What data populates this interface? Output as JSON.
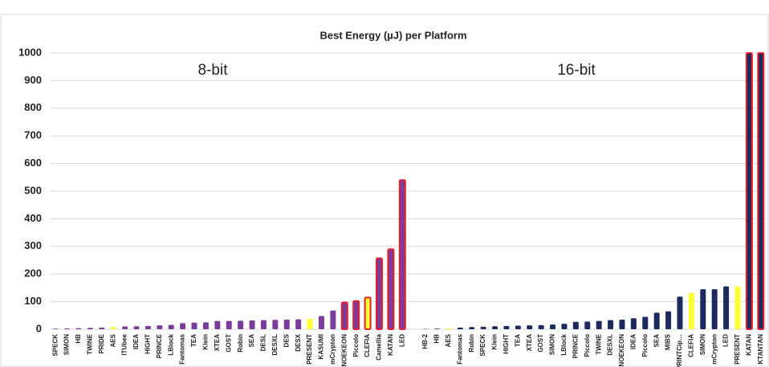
{
  "chart_data": {
    "type": "bar",
    "title": "Best Energy (µJ) per Platform",
    "annotations": [
      "8-bit",
      "16-bit"
    ],
    "categories": [
      "SPECK",
      "SIMON",
      "HB",
      "TWINE",
      "PRIDE",
      "AES",
      "ITUbee",
      "IDEA",
      "HIGHT",
      "PRINCE",
      "LBlock",
      "Fantomas",
      "TEA",
      "Klein",
      "XTEA",
      "GOST",
      "Robin",
      "SEA",
      "DESL",
      "DESXL",
      "DES",
      "DESX",
      "PRESENT",
      "KASUMI",
      "mCrypton",
      "NOEKEON",
      "Piccolo",
      "CLEFIA",
      "Camellia",
      "KATAN",
      "LED",
      null,
      "HB-2",
      "HB",
      "AES",
      "Fantomas",
      "Robin",
      "SPECK",
      "Klein",
      "HIGHT",
      "TEA",
      "XTEA",
      "GOST",
      "SIMON",
      "LBlock",
      "PRINCE",
      "Piccolo",
      "TWINE",
      "DESXL",
      "NOEKEON",
      "IDEA",
      "Piccolo",
      "SEA",
      "MIBS",
      "PRINTCip…",
      "CLEFIA",
      "SIMON",
      "mCrypton",
      "LED",
      "PRESENT",
      "KATAN",
      "KTANTAN"
    ],
    "values": [
      2,
      3,
      4,
      5,
      6,
      8,
      10,
      11,
      12,
      14,
      16,
      22,
      24,
      25,
      30,
      30,
      31,
      32,
      33,
      34,
      35,
      36,
      38,
      48,
      68,
      97,
      102,
      115,
      257,
      290,
      540,
      null,
      1,
      2,
      4,
      6,
      8,
      9,
      11,
      12,
      13,
      14,
      15,
      17,
      20,
      27,
      28,
      30,
      33,
      35,
      40,
      45,
      60,
      65,
      118,
      132,
      145,
      145,
      155,
      155,
      1000,
      1000
    ],
    "colors": [
      "#7a3d9e",
      "#7a3d9e",
      "#7a3d9e",
      "#7a3d9e",
      "#7a3d9e",
      "#ffff33",
      "#7a3d9e",
      "#7a3d9e",
      "#7a3d9e",
      "#7a3d9e",
      "#7a3d9e",
      "#7a3d9e",
      "#7a3d9e",
      "#7a3d9e",
      "#7a3d9e",
      "#7a3d9e",
      "#7a3d9e",
      "#7a3d9e",
      "#7a3d9e",
      "#7a3d9e",
      "#7a3d9e",
      "#7a3d9e",
      "#ffff33",
      "#7a3d9e",
      "#7a3d9e",
      "#7a3d9e",
      "#7a3d9e",
      "#ffff33",
      "#7a3d9e",
      "#7a3d9e",
      "#7a3d9e",
      null,
      "#1c2a5e",
      "#1c2a5e",
      "#ffff33",
      "#1c2a5e",
      "#1c2a5e",
      "#1c2a5e",
      "#1c2a5e",
      "#1c2a5e",
      "#1c2a5e",
      "#1c2a5e",
      "#1c2a5e",
      "#1c2a5e",
      "#1c2a5e",
      "#1c2a5e",
      "#1c2a5e",
      "#1c2a5e",
      "#1c2a5e",
      "#1c2a5e",
      "#1c2a5e",
      "#1c2a5e",
      "#1c2a5e",
      "#1c2a5e",
      "#1c2a5e",
      "#ffff33",
      "#1c2a5e",
      "#1c2a5e",
      "#1c2a5e",
      "#ffff33",
      "#1c2a5e",
      "#1c2a5e"
    ],
    "edgecolors": [
      null,
      null,
      null,
      null,
      null,
      null,
      null,
      null,
      null,
      null,
      null,
      null,
      null,
      null,
      null,
      null,
      null,
      null,
      null,
      null,
      null,
      null,
      null,
      null,
      null,
      "#e3202b",
      "#e3202b",
      "#e3202b",
      "#e3202b",
      "#e3202b",
      "#e3202b",
      null,
      null,
      null,
      null,
      null,
      null,
      null,
      null,
      null,
      null,
      null,
      null,
      null,
      null,
      null,
      null,
      null,
      null,
      null,
      null,
      null,
      null,
      null,
      null,
      null,
      null,
      null,
      null,
      null,
      "#e3202b",
      "#e3202b"
    ],
    "ylim": [
      0,
      1000
    ],
    "yticks": [
      0,
      100,
      200,
      300,
      400,
      500,
      600,
      700,
      800,
      900,
      1000
    ],
    "grid": true
  }
}
